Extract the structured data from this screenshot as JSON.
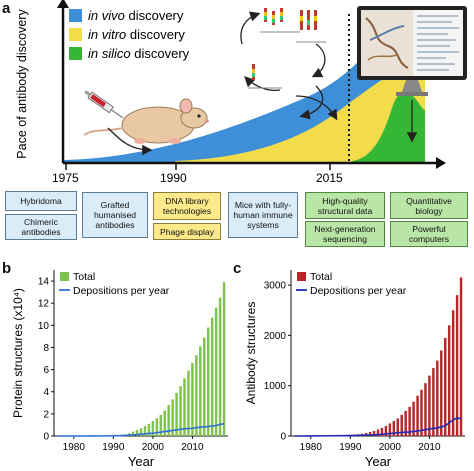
{
  "colors": {
    "in_vivo": "#3f8fd8",
    "in_vitro": "#f2dc4a",
    "in_silico": "#36b635",
    "bar_green": "#7fc24f",
    "bar_red": "#b8262a",
    "line_blue": "#2f6fd6",
    "line_dark_blue": "#1f2bb8"
  },
  "panel_a": {
    "letter": "a",
    "ylabel": "Pace of antibody discovery",
    "legend": [
      {
        "prefix_italic": "in vivo",
        "suffix": " discovery",
        "color_key": "in_vivo"
      },
      {
        "prefix_italic": "in vitro",
        "suffix": " discovery",
        "color_key": "in_vitro"
      },
      {
        "prefix_italic": "in silico",
        "suffix": " discovery",
        "color_key": "in_silico"
      }
    ],
    "year_ticks": [
      "1975",
      "1990",
      "2015"
    ],
    "icons": [
      "syringe-icon",
      "mouse-icon",
      "phage-cycle-icon",
      "computer-monitor-icon"
    ],
    "timeline_boxes": [
      {
        "text": "Hybridoma",
        "style": "blue"
      },
      {
        "text": "Chimeric antibodies",
        "style": "blue"
      },
      {
        "text": "Grafted humanised antibodies",
        "style": "blue"
      },
      {
        "text": "DNA library technologies",
        "style": "yellow"
      },
      {
        "text": "Phage display",
        "style": "yellow"
      },
      {
        "text": "Mice with fully-human immune systems",
        "style": "blue"
      },
      {
        "text": "High-quality structural data",
        "style": "green"
      },
      {
        "text": "Next-generation sequencing",
        "style": "green"
      },
      {
        "text": "Quantitative biology",
        "style": "green"
      },
      {
        "text": "Powerful computers",
        "style": "green"
      }
    ]
  },
  "chart_data": [
    {
      "panel": "b",
      "type": "bar",
      "ylabel": "Protein structures (x10⁴)",
      "xlabel": "Year",
      "xticks": [
        "1980",
        "1990",
        "2000",
        "2010"
      ],
      "yticks": [
        "0",
        "2",
        "4",
        "6",
        "8",
        "10",
        "12",
        "14"
      ],
      "ylim": [
        0,
        15
      ],
      "xlim": [
        1975,
        2019
      ],
      "legend": [
        "Total",
        "Depositions per year"
      ],
      "series": [
        {
          "name": "Total",
          "type": "bar",
          "x": [
            1976,
            1977,
            1978,
            1979,
            1980,
            1981,
            1982,
            1983,
            1984,
            1985,
            1986,
            1987,
            1988,
            1989,
            1990,
            1991,
            1992,
            1993,
            1994,
            1995,
            1996,
            1997,
            1998,
            1999,
            2000,
            2001,
            2002,
            2003,
            2004,
            2005,
            2006,
            2007,
            2008,
            2009,
            2010,
            2011,
            2012,
            2013,
            2014,
            2015,
            2016,
            2017,
            2018
          ],
          "y": [
            0.01,
            0.01,
            0.01,
            0.01,
            0.01,
            0.01,
            0.01,
            0.01,
            0.02,
            0.02,
            0.02,
            0.03,
            0.03,
            0.04,
            0.05,
            0.08,
            0.1,
            0.15,
            0.25,
            0.4,
            0.55,
            0.7,
            0.9,
            1.1,
            1.35,
            1.6,
            1.9,
            2.3,
            2.8,
            3.3,
            3.9,
            4.5,
            5.2,
            5.9,
            6.6,
            7.3,
            8.1,
            8.9,
            9.8,
            10.7,
            11.6,
            12.5,
            13.9
          ]
        },
        {
          "name": "Depositions per year",
          "type": "line",
          "x": [
            1976,
            1980,
            1985,
            1990,
            1993,
            1995,
            1998,
            2000,
            2003,
            2005,
            2008,
            2010,
            2012,
            2014,
            2016,
            2017,
            2018
          ],
          "y": [
            0.0,
            0.0,
            0.01,
            0.02,
            0.05,
            0.1,
            0.2,
            0.25,
            0.4,
            0.5,
            0.65,
            0.7,
            0.8,
            0.85,
            0.95,
            1.05,
            1.1
          ]
        }
      ]
    },
    {
      "panel": "c",
      "type": "bar",
      "ylabel": "Antibody structures",
      "xlabel": "Year",
      "xticks": [
        "1980",
        "1990",
        "2000",
        "2010"
      ],
      "yticks": [
        "0",
        "1000",
        "2000",
        "3000"
      ],
      "ylim": [
        0,
        3300
      ],
      "xlim": [
        1975,
        2019
      ],
      "legend": [
        "Total",
        "Depositions per year"
      ],
      "series": [
        {
          "name": "Total",
          "type": "bar",
          "x": [
            1976,
            1977,
            1978,
            1979,
            1980,
            1981,
            1982,
            1983,
            1984,
            1985,
            1986,
            1987,
            1988,
            1989,
            1990,
            1991,
            1992,
            1993,
            1994,
            1995,
            1996,
            1997,
            1998,
            1999,
            2000,
            2001,
            2002,
            2003,
            2004,
            2005,
            2006,
            2007,
            2008,
            2009,
            2010,
            2011,
            2012,
            2013,
            2014,
            2015,
            2016,
            2017,
            2018
          ],
          "y": [
            2,
            3,
            4,
            5,
            6,
            7,
            8,
            9,
            10,
            12,
            14,
            16,
            18,
            20,
            25,
            30,
            35,
            45,
            60,
            80,
            100,
            130,
            160,
            200,
            250,
            300,
            350,
            420,
            500,
            580,
            680,
            800,
            920,
            1050,
            1200,
            1350,
            1500,
            1700,
            1950,
            2200,
            2500,
            2800,
            3150
          ]
        },
        {
          "name": "Depositions per year",
          "type": "line",
          "x": [
            1976,
            1980,
            1985,
            1990,
            1993,
            1995,
            1998,
            2000,
            2003,
            2005,
            2008,
            2010,
            2012,
            2014,
            2015,
            2016,
            2017,
            2018
          ],
          "y": [
            0,
            2,
            5,
            8,
            15,
            20,
            35,
            50,
            70,
            80,
            110,
            140,
            160,
            200,
            260,
            320,
            360,
            340
          ]
        }
      ]
    }
  ]
}
